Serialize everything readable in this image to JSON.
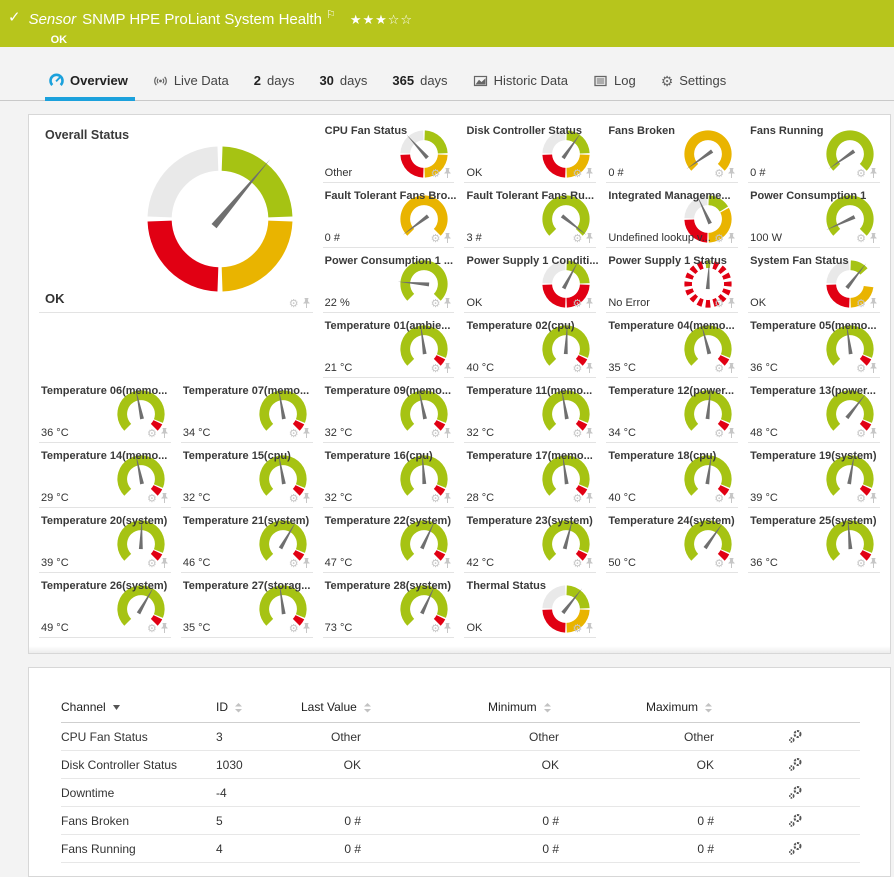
{
  "colors": {
    "green": "#a6c313",
    "yellow": "#e9b400",
    "red": "#e10013",
    "gray": "#e9e9e9",
    "needle": "#6f6f6f",
    "accent": "#1ba1dc",
    "header_bg": "#b7c51c"
  },
  "icons": {
    "gear_glyph": "⚙",
    "settings_glyph": "⚙"
  },
  "header": {
    "check": "✓",
    "kind_label": "Sensor",
    "title": "SNMP HPE ProLiant System Health",
    "flag": "⚐",
    "stars": "★★★☆☆",
    "status": "OK"
  },
  "tabs": [
    {
      "label": "Overview"
    },
    {
      "label": "Live Data"
    },
    {
      "prefix": "2",
      "label": "days"
    },
    {
      "prefix": "30",
      "label": "days"
    },
    {
      "prefix": "365",
      "label": "days"
    },
    {
      "label": "Historic Data"
    },
    {
      "label": "Log"
    },
    {
      "label": "Settings"
    }
  ],
  "gauges": [
    {
      "title": "Overall Status",
      "value": "OK",
      "large": true,
      "needle": 40,
      "segments": [
        [
          "green",
          2,
          88
        ],
        [
          "yellow",
          92,
          178
        ],
        [
          "red",
          182,
          268
        ],
        [
          "gray",
          272,
          358
        ]
      ]
    },
    {
      "title": "CPU Fan Status",
      "value": "Other",
      "needle": -42,
      "segments": [
        [
          "gray",
          -88,
          -2
        ],
        [
          "green",
          2,
          88
        ],
        [
          "yellow",
          92,
          178
        ],
        [
          "red",
          182,
          268
        ]
      ]
    },
    {
      "title": "Disk Controller Status",
      "value": "OK",
      "needle": 35,
      "segments": [
        [
          "gray",
          -88,
          -2
        ],
        [
          "green",
          2,
          88
        ],
        [
          "yellow",
          92,
          178
        ],
        [
          "red",
          182,
          268
        ]
      ]
    },
    {
      "title": "Fans Broken",
      "value": "0 #",
      "needle": -125,
      "segments": [
        [
          "yellow",
          -135,
          135
        ]
      ]
    },
    {
      "title": "Fans Running",
      "value": "0 #",
      "needle": -125,
      "segments": [
        [
          "green",
          -135,
          135
        ]
      ]
    },
    {
      "title": "Fault Tolerant Fans Bro...",
      "value": "0 #",
      "needle": -127,
      "segments": [
        [
          "yellow",
          -135,
          135
        ]
      ]
    },
    {
      "title": "Fault Tolerant Fans Ru...",
      "value": "3 #",
      "needle": 128,
      "segments": [
        [
          "green",
          -135,
          135
        ]
      ]
    },
    {
      "title": "Integrated Manageme...",
      "value": "Undefined lookup v...",
      "needle": -25,
      "segments": [
        [
          "gray",
          -88,
          -2
        ],
        [
          "green",
          2,
          58
        ],
        [
          "yellow",
          62,
          178
        ],
        [
          "red",
          182,
          268
        ]
      ]
    },
    {
      "title": "Power Consumption 1",
      "value": "100 W",
      "needle": -115,
      "segments": [
        [
          "green",
          -135,
          135
        ]
      ]
    },
    {
      "title": "Power Consumption 1 ...",
      "value": "22 %",
      "needle": -85,
      "segments": [
        [
          "green",
          -135,
          135
        ]
      ]
    },
    {
      "title": "Power Supply 1 Conditi...",
      "value": "OK",
      "needle": 28,
      "segments": [
        [
          "gray",
          -88,
          -2
        ],
        [
          "green",
          2,
          88
        ],
        [
          "red",
          92,
          178
        ],
        [
          "red",
          182,
          268
        ]
      ]
    },
    {
      "title": "Power Supply 1 Status",
      "value": "No Error",
      "needle": 3,
      "dashes": {
        "count": 16,
        "color": "red",
        "highlight": "green",
        "highlight_index": 0
      }
    },
    {
      "title": "System Fan Status",
      "value": "OK",
      "needle": 38,
      "segments": [
        [
          "gray",
          -88,
          -2
        ],
        [
          "green",
          2,
          48
        ],
        [
          "yellow",
          98,
          178
        ],
        [
          "red",
          182,
          268
        ]
      ]
    },
    {
      "title": "Temperature 01(ambie...",
      "value": "21 °C",
      "needle": -8,
      "segments": [
        [
          "green",
          -135,
          112
        ],
        [
          "red",
          116,
          135
        ]
      ]
    },
    {
      "title": "Temperature 02(cpu)",
      "value": "40 °C",
      "needle": 3,
      "segments": [
        [
          "green",
          -135,
          112
        ],
        [
          "red",
          116,
          135
        ]
      ]
    },
    {
      "title": "Temperature 04(memo...",
      "value": "35 °C",
      "needle": -15,
      "segments": [
        [
          "green",
          -135,
          112
        ],
        [
          "red",
          116,
          135
        ]
      ]
    },
    {
      "title": "Temperature 05(memo...",
      "value": "36 °C",
      "needle": -8,
      "segments": [
        [
          "green",
          -135,
          112
        ],
        [
          "red",
          116,
          135
        ]
      ]
    },
    {
      "title": "Temperature 06(memo...",
      "value": "36 °C",
      "needle": -12,
      "segments": [
        [
          "green",
          -135,
          112
        ],
        [
          "red",
          116,
          135
        ]
      ]
    },
    {
      "title": "Temperature 07(memo...",
      "value": "34 °C",
      "needle": -10,
      "segments": [
        [
          "green",
          -135,
          112
        ],
        [
          "red",
          116,
          135
        ]
      ]
    },
    {
      "title": "Temperature 09(memo...",
      "value": "32 °C",
      "needle": -12,
      "segments": [
        [
          "green",
          -135,
          112
        ],
        [
          "red",
          116,
          135
        ]
      ]
    },
    {
      "title": "Temperature 11(memo...",
      "value": "32 °C",
      "needle": -10,
      "segments": [
        [
          "green",
          -135,
          112
        ],
        [
          "red",
          116,
          135
        ]
      ]
    },
    {
      "title": "Temperature 12(power...",
      "value": "34 °C",
      "needle": 6,
      "segments": [
        [
          "green",
          -135,
          112
        ],
        [
          "red",
          116,
          135
        ]
      ]
    },
    {
      "title": "Temperature 13(power...",
      "value": "48 °C",
      "needle": 38,
      "segments": [
        [
          "green",
          -135,
          112
        ],
        [
          "red",
          116,
          135
        ]
      ]
    },
    {
      "title": "Temperature 14(memo...",
      "value": "29 °C",
      "needle": -12,
      "segments": [
        [
          "green",
          -135,
          112
        ],
        [
          "red",
          116,
          135
        ]
      ]
    },
    {
      "title": "Temperature 15(cpu)",
      "value": "32 °C",
      "needle": -10,
      "segments": [
        [
          "green",
          -135,
          112
        ],
        [
          "red",
          116,
          135
        ]
      ]
    },
    {
      "title": "Temperature 16(cpu)",
      "value": "32 °C",
      "needle": -4,
      "segments": [
        [
          "green",
          -135,
          112
        ],
        [
          "red",
          116,
          135
        ]
      ]
    },
    {
      "title": "Temperature 17(memo...",
      "value": "28 °C",
      "needle": -8,
      "segments": [
        [
          "green",
          -135,
          112
        ],
        [
          "red",
          116,
          135
        ]
      ]
    },
    {
      "title": "Temperature 18(cpu)",
      "value": "40 °C",
      "needle": 8,
      "segments": [
        [
          "green",
          -135,
          112
        ],
        [
          "red",
          116,
          135
        ]
      ]
    },
    {
      "title": "Temperature 19(system)",
      "value": "39 °C",
      "needle": 10,
      "segments": [
        [
          "green",
          -135,
          112
        ],
        [
          "red",
          116,
          135
        ]
      ]
    },
    {
      "title": "Temperature 20(system)",
      "value": "39 °C",
      "needle": 2,
      "segments": [
        [
          "green",
          -135,
          112
        ],
        [
          "red",
          116,
          135
        ]
      ]
    },
    {
      "title": "Temperature 21(system)",
      "value": "46 °C",
      "needle": 30,
      "segments": [
        [
          "green",
          -135,
          112
        ],
        [
          "red",
          116,
          135
        ]
      ]
    },
    {
      "title": "Temperature 22(system)",
      "value": "47 °C",
      "needle": 25,
      "segments": [
        [
          "green",
          -135,
          112
        ],
        [
          "red",
          116,
          135
        ]
      ]
    },
    {
      "title": "Temperature 23(system)",
      "value": "42 °C",
      "needle": 15,
      "segments": [
        [
          "green",
          -135,
          112
        ],
        [
          "red",
          116,
          135
        ]
      ]
    },
    {
      "title": "Temperature 24(system)",
      "value": "50 °C",
      "needle": 35,
      "segments": [
        [
          "green",
          -135,
          112
        ],
        [
          "red",
          116,
          135
        ]
      ]
    },
    {
      "title": "Temperature 25(system)",
      "value": "36 °C",
      "needle": -5,
      "segments": [
        [
          "green",
          -135,
          112
        ],
        [
          "red",
          116,
          135
        ]
      ]
    },
    {
      "title": "Temperature 26(system)",
      "value": "49 °C",
      "needle": 30,
      "segments": [
        [
          "green",
          -135,
          112
        ],
        [
          "red",
          116,
          135
        ]
      ]
    },
    {
      "title": "Temperature 27(storag...",
      "value": "35 °C",
      "needle": -8,
      "segments": [
        [
          "green",
          -135,
          112
        ],
        [
          "red",
          116,
          135
        ]
      ]
    },
    {
      "title": "Temperature 28(system)",
      "value": "73 °C",
      "needle": 25,
      "segments": [
        [
          "green",
          -135,
          112
        ],
        [
          "red",
          116,
          135
        ]
      ]
    },
    {
      "title": "Thermal Status",
      "value": "OK",
      "needle": 38,
      "segments": [
        [
          "gray",
          -88,
          -2
        ],
        [
          "green",
          2,
          88
        ],
        [
          "yellow",
          92,
          178
        ],
        [
          "red",
          182,
          268
        ]
      ]
    }
  ],
  "table": {
    "columns": [
      {
        "label": "Channel",
        "sort": "desc"
      },
      {
        "label": "ID",
        "sort": "both"
      },
      {
        "label": "Last Value",
        "sort": "both"
      },
      {
        "label": "Minimum",
        "sort": "both"
      },
      {
        "label": "Maximum",
        "sort": "both"
      }
    ],
    "rows": [
      {
        "channel": "CPU Fan Status",
        "id": "3",
        "last": "Other",
        "min": "Other",
        "max": "Other"
      },
      {
        "channel": "Disk Controller Status",
        "id": "1030",
        "last": "OK",
        "min": "OK",
        "max": "OK"
      },
      {
        "channel": "Downtime",
        "id": "-4",
        "last": "",
        "min": "",
        "max": ""
      },
      {
        "channel": "Fans Broken",
        "id": "5",
        "last": "0 #",
        "min": "0 #",
        "max": "0 #"
      },
      {
        "channel": "Fans Running",
        "id": "4",
        "last": "0 #",
        "min": "0 #",
        "max": "0 #"
      }
    ]
  }
}
